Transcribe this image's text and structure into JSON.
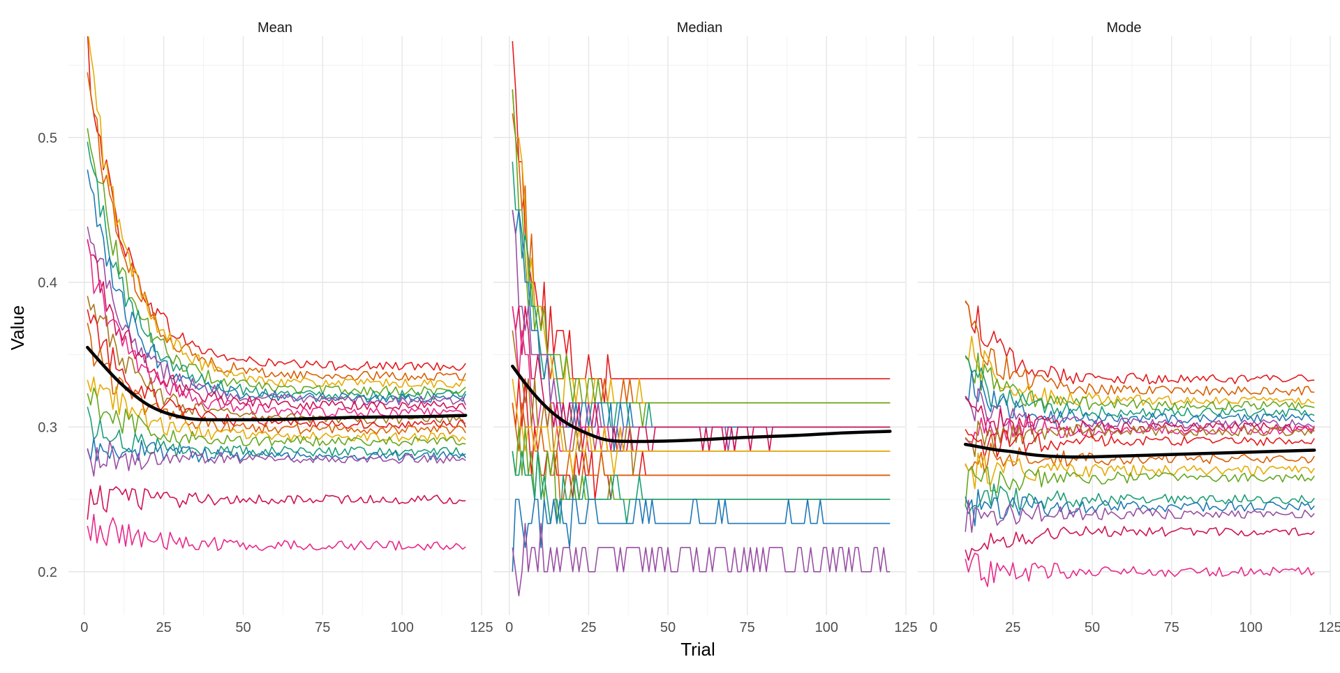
{
  "chart_data": {
    "type": "line",
    "xlabel": "Trial",
    "ylabel": "Value",
    "xlim": [
      -5,
      125
    ],
    "ylim": [
      0.17,
      0.57
    ],
    "x_ticks": [
      0,
      25,
      50,
      75,
      100,
      125
    ],
    "x_tick_labels": [
      "0",
      "25",
      "50",
      "75",
      "100",
      "125"
    ],
    "y_ticks": [
      0.2,
      0.3,
      0.4,
      0.5
    ],
    "y_tick_labels": [
      "0.2",
      "0.3",
      "0.4",
      "0.5"
    ],
    "grid": true,
    "legend": "none",
    "colors": {
      "palette": [
        "#E41A1C",
        "#D95F02",
        "#E6AB02",
        "#66A61E",
        "#1B9E77",
        "#1F78B4",
        "#984EA3",
        "#CE1256",
        "#E7298A",
        "#A6761D"
      ],
      "trend": "#000000",
      "grid_major": "#E6E6E6",
      "grid_minor": "#F2F2F2",
      "text": "#4D4D4D"
    },
    "facets": [
      {
        "title": "Mean",
        "x_start": 1,
        "trend": [
          [
            1,
            0.355
          ],
          [
            5,
            0.345
          ],
          [
            10,
            0.333
          ],
          [
            15,
            0.323
          ],
          [
            20,
            0.315
          ],
          [
            25,
            0.31
          ],
          [
            30,
            0.307
          ],
          [
            35,
            0.305
          ],
          [
            45,
            0.305
          ],
          [
            60,
            0.305
          ],
          [
            75,
            0.306
          ],
          [
            90,
            0.307
          ],
          [
            105,
            0.307
          ],
          [
            120,
            0.308
          ]
        ],
        "series": [
          {
            "start": 0.56,
            "end": 0.342,
            "noise": 0.003
          },
          {
            "start": 0.55,
            "end": 0.335,
            "noise": 0.003
          },
          {
            "start": 0.57,
            "end": 0.33,
            "noise": 0.003
          },
          {
            "start": 0.52,
            "end": 0.325,
            "noise": 0.003
          },
          {
            "start": 0.5,
            "end": 0.322,
            "noise": 0.003
          },
          {
            "start": 0.47,
            "end": 0.32,
            "noise": 0.003
          },
          {
            "start": 0.45,
            "end": 0.318,
            "noise": 0.003
          },
          {
            "start": 0.43,
            "end": 0.315,
            "noise": 0.003
          },
          {
            "start": 0.42,
            "end": 0.31,
            "noise": 0.003
          },
          {
            "start": 0.4,
            "end": 0.305,
            "noise": 0.003
          },
          {
            "start": 0.38,
            "end": 0.302,
            "noise": 0.003
          },
          {
            "start": 0.36,
            "end": 0.298,
            "noise": 0.003
          },
          {
            "start": 0.34,
            "end": 0.293,
            "noise": 0.003
          },
          {
            "start": 0.32,
            "end": 0.29,
            "noise": 0.003
          },
          {
            "start": 0.3,
            "end": 0.283,
            "noise": 0.003
          },
          {
            "start": 0.29,
            "end": 0.28,
            "noise": 0.003
          },
          {
            "start": 0.28,
            "end": 0.278,
            "noise": 0.003
          },
          {
            "start": 0.25,
            "end": 0.25,
            "noise": 0.003
          },
          {
            "start": 0.235,
            "end": 0.218,
            "noise": 0.003
          }
        ]
      },
      {
        "title": "Median",
        "x_start": 1,
        "trend": [
          [
            1,
            0.342
          ],
          [
            5,
            0.33
          ],
          [
            10,
            0.317
          ],
          [
            15,
            0.307
          ],
          [
            20,
            0.3
          ],
          [
            25,
            0.295
          ],
          [
            30,
            0.291
          ],
          [
            35,
            0.29
          ],
          [
            45,
            0.29
          ],
          [
            60,
            0.291
          ],
          [
            75,
            0.293
          ],
          [
            90,
            0.294
          ],
          [
            105,
            0.296
          ],
          [
            120,
            0.297
          ]
        ],
        "series": [
          {
            "start": 0.56,
            "end": 0.333,
            "noise": 0.006
          },
          {
            "start": 0.55,
            "end": 0.317,
            "noise": 0.006
          },
          {
            "start": 0.54,
            "end": 0.317,
            "noise": 0.006
          },
          {
            "start": 0.52,
            "end": 0.316,
            "noise": 0.006
          },
          {
            "start": 0.5,
            "end": 0.3,
            "noise": 0.006
          },
          {
            "start": 0.46,
            "end": 0.3,
            "noise": 0.006
          },
          {
            "start": 0.43,
            "end": 0.298,
            "noise": 0.006
          },
          {
            "start": 0.4,
            "end": 0.297,
            "noise": 0.006
          },
          {
            "start": 0.38,
            "end": 0.283,
            "noise": 0.006
          },
          {
            "start": 0.35,
            "end": 0.283,
            "noise": 0.006
          },
          {
            "start": 0.33,
            "end": 0.267,
            "noise": 0.006
          },
          {
            "start": 0.31,
            "end": 0.267,
            "noise": 0.006
          },
          {
            "start": 0.3,
            "end": 0.283,
            "noise": 0.006
          },
          {
            "start": 0.29,
            "end": 0.25,
            "noise": 0.006
          },
          {
            "start": 0.28,
            "end": 0.25,
            "noise": 0.006
          },
          {
            "start": 0.235,
            "end": 0.236,
            "noise": 0.006
          },
          {
            "start": 0.22,
            "end": 0.208,
            "noise": 0.006
          }
        ]
      },
      {
        "title": "Mode",
        "x_start": 10,
        "trend": [
          [
            10,
            0.288
          ],
          [
            15,
            0.286
          ],
          [
            20,
            0.284
          ],
          [
            25,
            0.283
          ],
          [
            30,
            0.281
          ],
          [
            35,
            0.28
          ],
          [
            45,
            0.279
          ],
          [
            60,
            0.28
          ],
          [
            75,
            0.281
          ],
          [
            90,
            0.282
          ],
          [
            105,
            0.283
          ],
          [
            120,
            0.284
          ]
        ],
        "series": [
          {
            "start": 0.39,
            "end": 0.333,
            "noise": 0.003
          },
          {
            "start": 0.38,
            "end": 0.325,
            "noise": 0.003
          },
          {
            "start": 0.36,
            "end": 0.318,
            "noise": 0.003
          },
          {
            "start": 0.35,
            "end": 0.315,
            "noise": 0.003
          },
          {
            "start": 0.34,
            "end": 0.31,
            "noise": 0.003
          },
          {
            "start": 0.33,
            "end": 0.306,
            "noise": 0.003
          },
          {
            "start": 0.32,
            "end": 0.302,
            "noise": 0.003
          },
          {
            "start": 0.31,
            "end": 0.3,
            "noise": 0.003
          },
          {
            "start": 0.3,
            "end": 0.298,
            "noise": 0.003
          },
          {
            "start": 0.29,
            "end": 0.297,
            "noise": 0.003
          },
          {
            "start": 0.285,
            "end": 0.29,
            "noise": 0.003
          },
          {
            "start": 0.28,
            "end": 0.278,
            "noise": 0.003
          },
          {
            "start": 0.27,
            "end": 0.27,
            "noise": 0.003
          },
          {
            "start": 0.26,
            "end": 0.265,
            "noise": 0.003
          },
          {
            "start": 0.25,
            "end": 0.25,
            "noise": 0.003
          },
          {
            "start": 0.245,
            "end": 0.245,
            "noise": 0.003
          },
          {
            "start": 0.24,
            "end": 0.24,
            "noise": 0.003
          },
          {
            "start": 0.217,
            "end": 0.228,
            "noise": 0.003
          },
          {
            "start": 0.2,
            "end": 0.2,
            "noise": 0.003
          }
        ]
      }
    ]
  }
}
